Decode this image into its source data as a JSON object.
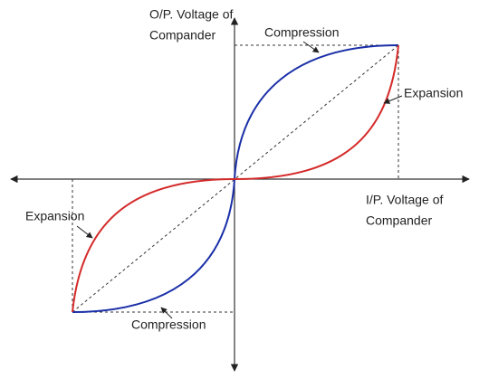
{
  "y_axis_label": [
    "O/P. Voltage of",
    "Compander"
  ],
  "x_axis_label": [
    "I/P. Voltage of",
    "Compander"
  ],
  "curve_labels": {
    "compression_top": "Compression",
    "expansion_top": "Expansion",
    "expansion_bottom": "Expansion",
    "compression_bottom": "Compression"
  }
}
